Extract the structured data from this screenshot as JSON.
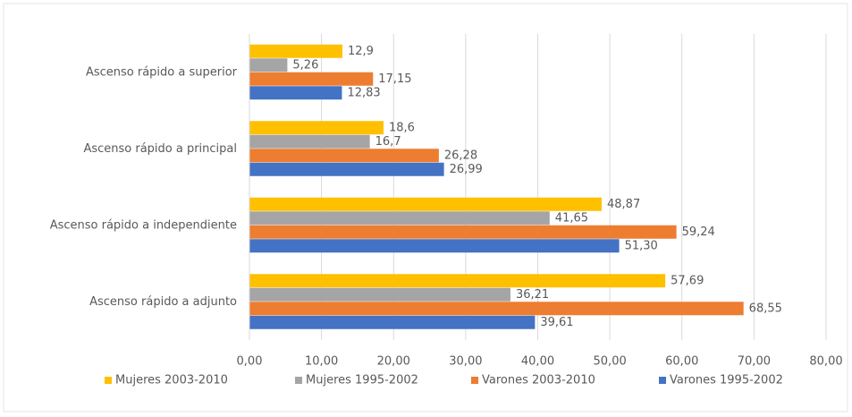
{
  "chart_data": {
    "type": "bar",
    "orientation": "horizontal",
    "categories": [
      "Ascenso rápido a superior",
      "Ascenso rápido a principal",
      "Ascenso rápido a independiente",
      "Ascenso rápido a adjunto"
    ],
    "series": [
      {
        "name": "Mujeres 2003-2010",
        "color": "#ffc000",
        "values": [
          12.9,
          18.6,
          48.87,
          57.69
        ],
        "value_labels": [
          "12,9",
          "18,6",
          "48,87",
          "57,69"
        ]
      },
      {
        "name": "Mujeres 1995-2002",
        "color": "#a5a5a5",
        "values": [
          5.26,
          16.7,
          41.65,
          36.21
        ],
        "value_labels": [
          "5,26",
          "16,7",
          "41,65",
          "36,21"
        ]
      },
      {
        "name": "Varones 2003-2010",
        "color": "#ed7d31",
        "values": [
          17.15,
          26.28,
          59.24,
          68.55
        ],
        "value_labels": [
          "17,15",
          "26,28",
          "59,24",
          "68,55"
        ]
      },
      {
        "name": "Varones 1995-2002",
        "color": "#4472c4",
        "values": [
          12.83,
          26.99,
          51.3,
          39.61
        ],
        "value_labels": [
          "12,83",
          "26,99",
          "51,30",
          "39,61"
        ]
      }
    ],
    "xlim": [
      0,
      80
    ],
    "xticks": [
      {
        "value": 0,
        "label": "0,00"
      },
      {
        "value": 10,
        "label": "10,00"
      },
      {
        "value": 20,
        "label": "20,00"
      },
      {
        "value": 30,
        "label": "30,00"
      },
      {
        "value": 40,
        "label": "40,00"
      },
      {
        "value": 50,
        "label": "50,00"
      },
      {
        "value": 60,
        "label": "60,00"
      },
      {
        "value": 70,
        "label": "70,00"
      },
      {
        "value": 80,
        "label": "80,00"
      }
    ],
    "grid": true,
    "legend": "bottom"
  }
}
